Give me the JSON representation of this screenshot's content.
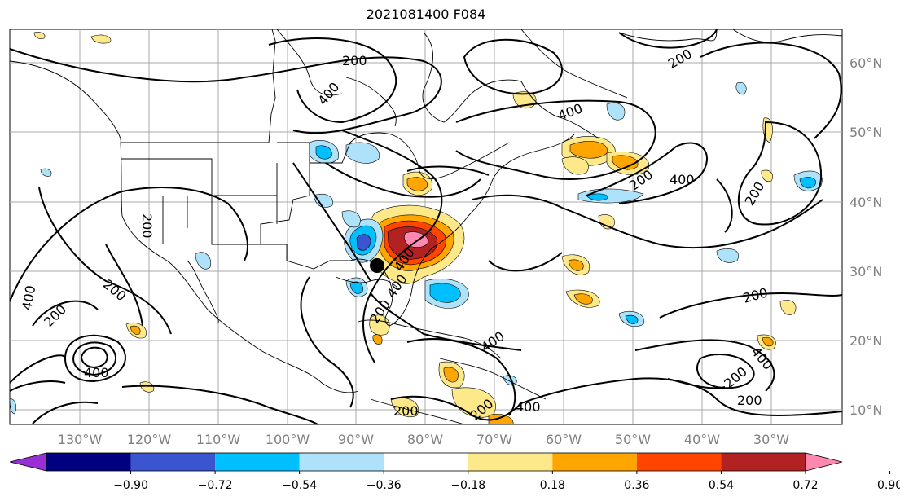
{
  "title": "2021081400 F084",
  "lon_labels": [
    "130°W",
    "120°W",
    "110°W",
    "100°W",
    "90°W",
    "80°W",
    "70°W",
    "60°W",
    "50°W",
    "40°W",
    "30°W"
  ],
  "lat_labels": [
    "60°N",
    "50°N",
    "40°N",
    "30°N",
    "20°N",
    "10°N"
  ],
  "contour_labels": [
    "200",
    "400",
    "200",
    "400",
    "200",
    "400",
    "200",
    "200",
    "400",
    "200",
    "200",
    "200",
    "400",
    "200",
    "400",
    "200",
    "400",
    "400",
    "200",
    "400",
    "200",
    "200",
    "400"
  ],
  "colorbar": {
    "ticks": [
      "−0.90",
      "−0.72",
      "−0.54",
      "−0.36",
      "−0.18",
      "0.18",
      "0.36",
      "0.54",
      "0.72",
      "0.90"
    ],
    "colors": [
      "#9a2fd6",
      "#000080",
      "#3a55cf",
      "#00bfff",
      "#aee1fa",
      "#ffffff",
      "#fde98a",
      "#ffa500",
      "#ff4500",
      "#b22222",
      "#ff88b0"
    ]
  },
  "palette": {
    "purple": "#9a2fd6",
    "navy": "#000080",
    "blue": "#3a55cf",
    "skyblue": "#00bfff",
    "lightblue": "#aee1fa",
    "yellow": "#fde98a",
    "orange": "#ffa500",
    "redorange": "#ff4500",
    "darkred": "#b22222",
    "pink": "#ff88b0"
  }
}
